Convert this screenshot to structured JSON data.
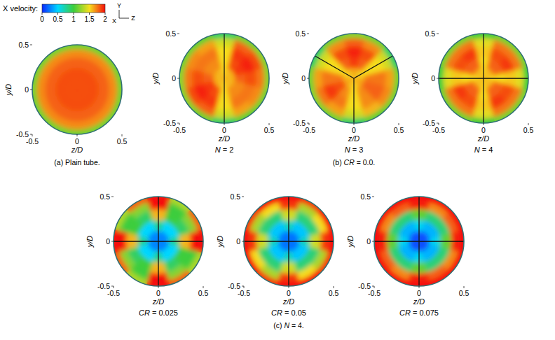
{
  "figure": {
    "colorbar": {
      "title": "X velocity:",
      "range": [
        0,
        2
      ],
      "ticks": [
        0,
        0.5,
        1,
        1.5,
        2
      ]
    },
    "axis_triad": {
      "up": "Y",
      "out": "X",
      "right": "Z"
    }
  },
  "chart_data": [
    {
      "type": "polar_heatmap_group",
      "caption": "(a) Plain tube.",
      "panels": [
        {
          "type": "polar_heatmap",
          "xlabel": "z/D",
          "ylabel": "y/D",
          "xlim": [
            -0.5,
            0.5
          ],
          "ylim": [
            -0.5,
            0.5
          ],
          "xticks": [
            -0.5,
            0,
            0.5
          ],
          "yticks": [
            -0.5,
            0,
            0.5
          ],
          "r_edges": [
            0,
            0.12,
            0.24,
            0.36,
            0.45,
            0.5
          ],
          "theta_edges": [
            -15,
            15,
            45,
            75,
            105,
            135,
            165,
            195,
            225,
            255,
            285,
            315,
            345
          ],
          "tape_angles": [],
          "cells": [
            [
              1.85,
              1.85,
              1.85,
              1.85,
              1.85,
              1.85,
              1.85,
              1.85,
              1.85,
              1.85,
              1.85,
              1.85
            ],
            [
              1.85,
              1.85,
              1.85,
              1.85,
              1.85,
              1.85,
              1.85,
              1.85,
              1.85,
              1.85,
              1.85,
              1.85
            ],
            [
              1.8,
              1.8,
              1.8,
              1.8,
              1.8,
              1.8,
              1.8,
              1.8,
              1.8,
              1.8,
              1.8,
              1.8
            ],
            [
              1.7,
              1.7,
              1.7,
              1.7,
              1.7,
              1.7,
              1.7,
              1.7,
              1.7,
              1.7,
              1.7,
              1.7
            ],
            [
              1.15,
              1.15,
              1.15,
              1.15,
              1.15,
              1.15,
              1.15,
              1.15,
              1.15,
              1.15,
              1.15,
              1.15
            ]
          ]
        }
      ]
    },
    {
      "type": "polar_heatmap_group",
      "caption": "(b) CR = 0.0.",
      "panels": [
        {
          "type": "polar_heatmap",
          "title": "N = 2",
          "xlabel": "z/D",
          "ylabel": "y/D",
          "xlim": [
            -0.5,
            0.5
          ],
          "ylim": [
            -0.5,
            0.5
          ],
          "xticks": [
            -0.5,
            0,
            0.5
          ],
          "yticks": [
            -0.5,
            0,
            0.5
          ],
          "r_edges": [
            0,
            0.12,
            0.24,
            0.36,
            0.45,
            0.5
          ],
          "theta_edges": [
            -15,
            15,
            45,
            75,
            105,
            135,
            165,
            195,
            225,
            255,
            285,
            315,
            345
          ],
          "tape_angles": [
            90,
            270
          ],
          "cells": [
            [
              1.6,
              1.6,
              1.6,
              1.5,
              1.6,
              1.6,
              1.6,
              1.6,
              1.6,
              1.5,
              1.6,
              1.6
            ],
            [
              1.8,
              1.9,
              1.85,
              1.5,
              1.7,
              1.7,
              1.8,
              1.9,
              1.85,
              1.5,
              1.7,
              1.7
            ],
            [
              1.85,
              1.95,
              1.9,
              1.5,
              1.75,
              1.75,
              1.85,
              1.95,
              1.9,
              1.5,
              1.75,
              1.75
            ],
            [
              1.75,
              1.85,
              1.8,
              1.4,
              1.65,
              1.7,
              1.75,
              1.85,
              1.8,
              1.4,
              1.65,
              1.7
            ],
            [
              1.2,
              1.2,
              1.15,
              0.9,
              1.1,
              1.15,
              1.2,
              1.2,
              1.15,
              0.9,
              1.1,
              1.15
            ]
          ]
        },
        {
          "type": "polar_heatmap",
          "title": "N = 3",
          "xlabel": "z/D",
          "ylabel": "y/D",
          "xlim": [
            -0.5,
            0.5
          ],
          "ylim": [
            -0.5,
            0.5
          ],
          "xticks": [
            -0.5,
            0,
            0.5
          ],
          "yticks": [
            -0.5,
            0,
            0.5
          ],
          "r_edges": [
            0,
            0.12,
            0.24,
            0.36,
            0.45,
            0.5
          ],
          "theta_edges": [
            -15,
            15,
            45,
            75,
            105,
            135,
            165,
            195,
            225,
            255,
            285,
            315,
            345
          ],
          "tape_angles": [
            30,
            150,
            270
          ],
          "cells": [
            [
              1.6,
              1.5,
              1.6,
              1.65,
              1.6,
              1.5,
              1.6,
              1.65,
              1.6,
              1.5,
              1.6,
              1.65
            ],
            [
              1.75,
              1.5,
              1.8,
              1.9,
              1.8,
              1.5,
              1.75,
              1.85,
              1.7,
              1.5,
              1.7,
              1.8
            ],
            [
              1.75,
              1.5,
              1.85,
              1.95,
              1.85,
              1.5,
              1.75,
              1.9,
              1.75,
              1.5,
              1.7,
              1.8
            ],
            [
              1.65,
              1.4,
              1.7,
              1.8,
              1.7,
              1.4,
              1.65,
              1.75,
              1.65,
              1.4,
              1.6,
              1.7
            ],
            [
              1.15,
              0.9,
              1.15,
              1.2,
              1.15,
              0.9,
              1.15,
              1.2,
              1.15,
              0.9,
              1.1,
              1.15
            ]
          ]
        },
        {
          "type": "polar_heatmap",
          "title": "N = 4",
          "xlabel": "z/D",
          "ylabel": "y/D",
          "xlim": [
            -0.5,
            0.5
          ],
          "ylim": [
            -0.5,
            0.5
          ],
          "xticks": [
            -0.5,
            0,
            0.5
          ],
          "yticks": [
            -0.5,
            0,
            0.5
          ],
          "r_edges": [
            0,
            0.12,
            0.24,
            0.36,
            0.45,
            0.5
          ],
          "theta_edges": [
            -15,
            15,
            45,
            75,
            105,
            135,
            165,
            195,
            225,
            255,
            285,
            315,
            345
          ],
          "tape_angles": [
            0,
            90,
            180,
            270
          ],
          "cells": [
            [
              1.5,
              1.6,
              1.6,
              1.5,
              1.6,
              1.6,
              1.5,
              1.6,
              1.6,
              1.5,
              1.6,
              1.6
            ],
            [
              1.5,
              1.8,
              1.8,
              1.5,
              1.8,
              1.8,
              1.5,
              1.8,
              1.8,
              1.5,
              1.8,
              1.8
            ],
            [
              1.55,
              1.9,
              1.85,
              1.55,
              1.9,
              1.85,
              1.55,
              1.9,
              1.85,
              1.55,
              1.9,
              1.85
            ],
            [
              1.45,
              1.75,
              1.75,
              1.45,
              1.75,
              1.75,
              1.45,
              1.75,
              1.75,
              1.45,
              1.75,
              1.75
            ],
            [
              1.0,
              1.15,
              1.15,
              1.0,
              1.15,
              1.15,
              1.0,
              1.15,
              1.15,
              1.0,
              1.15,
              1.15
            ]
          ]
        }
      ]
    },
    {
      "type": "polar_heatmap_group",
      "caption": "(c) N = 4.",
      "panels": [
        {
          "type": "polar_heatmap",
          "title": "CR = 0.025",
          "xlabel": "z/D",
          "ylabel": "y/D",
          "xlim": [
            -0.5,
            0.5
          ],
          "ylim": [
            -0.5,
            0.5
          ],
          "xticks": [
            -0.5,
            0,
            0.5
          ],
          "yticks": [
            -0.5,
            0,
            0.5
          ],
          "r_edges": [
            0,
            0.12,
            0.24,
            0.36,
            0.45,
            0.5
          ],
          "theta_edges": [
            -15,
            15,
            45,
            75,
            105,
            135,
            165,
            195,
            225,
            255,
            285,
            315,
            345
          ],
          "tape_angles": [
            0,
            90,
            180,
            270
          ],
          "cells": [
            [
              0.3,
              0.25,
              0.25,
              0.3,
              0.25,
              0.25,
              0.3,
              0.25,
              0.25,
              0.3,
              0.25,
              0.25
            ],
            [
              0.8,
              0.5,
              0.5,
              0.8,
              0.5,
              0.5,
              0.8,
              0.5,
              0.5,
              0.8,
              0.5,
              0.5
            ],
            [
              1.6,
              0.9,
              1.0,
              1.6,
              0.9,
              1.0,
              1.6,
              0.9,
              1.0,
              1.6,
              0.9,
              1.0
            ],
            [
              2.0,
              1.2,
              1.0,
              2.0,
              1.2,
              1.0,
              2.0,
              1.2,
              1.0,
              2.0,
              1.2,
              1.0
            ],
            [
              2.0,
              1.8,
              1.3,
              2.0,
              1.8,
              1.3,
              2.0,
              1.8,
              1.3,
              2.0,
              1.8,
              1.3
            ]
          ]
        },
        {
          "type": "polar_heatmap",
          "title": "CR = 0.05",
          "xlabel": "z/D",
          "ylabel": "y/D",
          "xlim": [
            -0.5,
            0.5
          ],
          "ylim": [
            -0.5,
            0.5
          ],
          "xticks": [
            -0.5,
            0,
            0.5
          ],
          "yticks": [
            -0.5,
            0,
            0.5
          ],
          "r_edges": [
            0,
            0.12,
            0.24,
            0.36,
            0.45,
            0.5
          ],
          "theta_edges": [
            -15,
            15,
            45,
            75,
            105,
            135,
            165,
            195,
            225,
            255,
            285,
            315,
            345
          ],
          "tape_angles": [
            0,
            90,
            180,
            270
          ],
          "cells": [
            [
              0.25,
              0.2,
              0.2,
              0.25,
              0.2,
              0.2,
              0.25,
              0.2,
              0.2,
              0.25,
              0.2,
              0.2
            ],
            [
              0.7,
              0.45,
              0.45,
              0.7,
              0.45,
              0.45,
              0.7,
              0.45,
              0.45,
              0.7,
              0.45,
              0.45
            ],
            [
              1.4,
              0.85,
              0.85,
              1.4,
              0.85,
              0.85,
              1.4,
              0.85,
              0.85,
              1.4,
              0.85,
              0.85
            ],
            [
              1.9,
              1.5,
              1.3,
              1.9,
              1.5,
              1.3,
              1.9,
              1.5,
              1.3,
              1.9,
              1.5,
              1.3
            ],
            [
              2.0,
              2.0,
              1.9,
              2.0,
              2.0,
              1.9,
              2.0,
              2.0,
              1.9,
              2.0,
              2.0,
              1.9
            ]
          ]
        },
        {
          "type": "polar_heatmap",
          "title": "CR = 0.075",
          "xlabel": "z/D",
          "ylabel": "y/D",
          "xlim": [
            -0.5,
            0.5
          ],
          "ylim": [
            -0.5,
            0.5
          ],
          "xticks": [
            -0.5,
            0,
            0.5
          ],
          "yticks": [
            -0.5,
            0,
            0.5
          ],
          "r_edges": [
            0,
            0.12,
            0.24,
            0.36,
            0.45,
            0.5
          ],
          "theta_edges": [
            -15,
            15,
            45,
            75,
            105,
            135,
            165,
            195,
            225,
            255,
            285,
            315,
            345
          ],
          "tape_angles": [
            0,
            90,
            180,
            270
          ],
          "cells": [
            [
              0.15,
              0.1,
              0.1,
              0.15,
              0.1,
              0.1,
              0.15,
              0.1,
              0.1,
              0.15,
              0.1,
              0.1
            ],
            [
              0.55,
              0.4,
              0.4,
              0.55,
              0.4,
              0.4,
              0.55,
              0.4,
              0.4,
              0.55,
              0.4,
              0.4
            ],
            [
              1.1,
              0.85,
              0.85,
              1.1,
              0.85,
              0.85,
              1.1,
              0.85,
              0.85,
              1.1,
              0.85,
              0.85
            ],
            [
              1.95,
              1.8,
              1.7,
              1.95,
              1.8,
              1.7,
              1.95,
              1.8,
              1.7,
              1.95,
              1.8,
              1.7
            ],
            [
              2.0,
              2.0,
              2.0,
              2.0,
              2.0,
              2.0,
              2.0,
              2.0,
              2.0,
              2.0,
              2.0,
              2.0
            ]
          ]
        }
      ]
    }
  ]
}
